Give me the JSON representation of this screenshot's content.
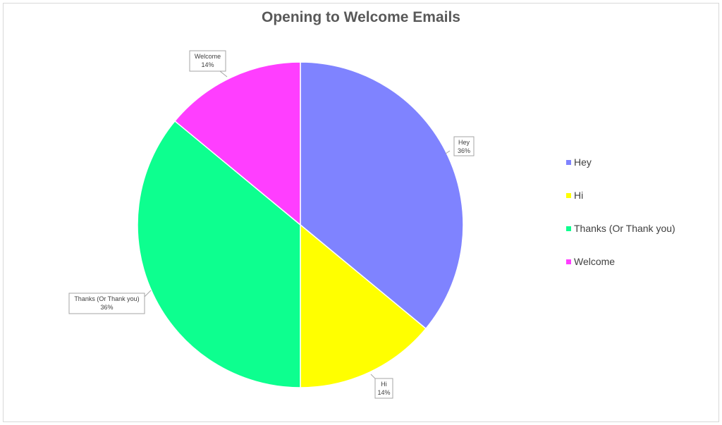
{
  "chart_data": {
    "type": "pie",
    "title": "Opening to Welcome Emails",
    "categories": [
      "Hey",
      "Hi",
      "Thanks (Or Thank you)",
      "Welcome"
    ],
    "values": [
      36,
      14,
      36,
      14
    ],
    "value_labels": [
      "36%",
      "14%",
      "36%",
      "14%"
    ],
    "colors": [
      "#7F83FF",
      "#FFFF00",
      "#0DFF8F",
      "#FF3EFF"
    ],
    "legend": {
      "position": "right",
      "entries": [
        "Hey",
        "Hi",
        "Thanks (Or Thank you)",
        "Welcome"
      ]
    }
  }
}
